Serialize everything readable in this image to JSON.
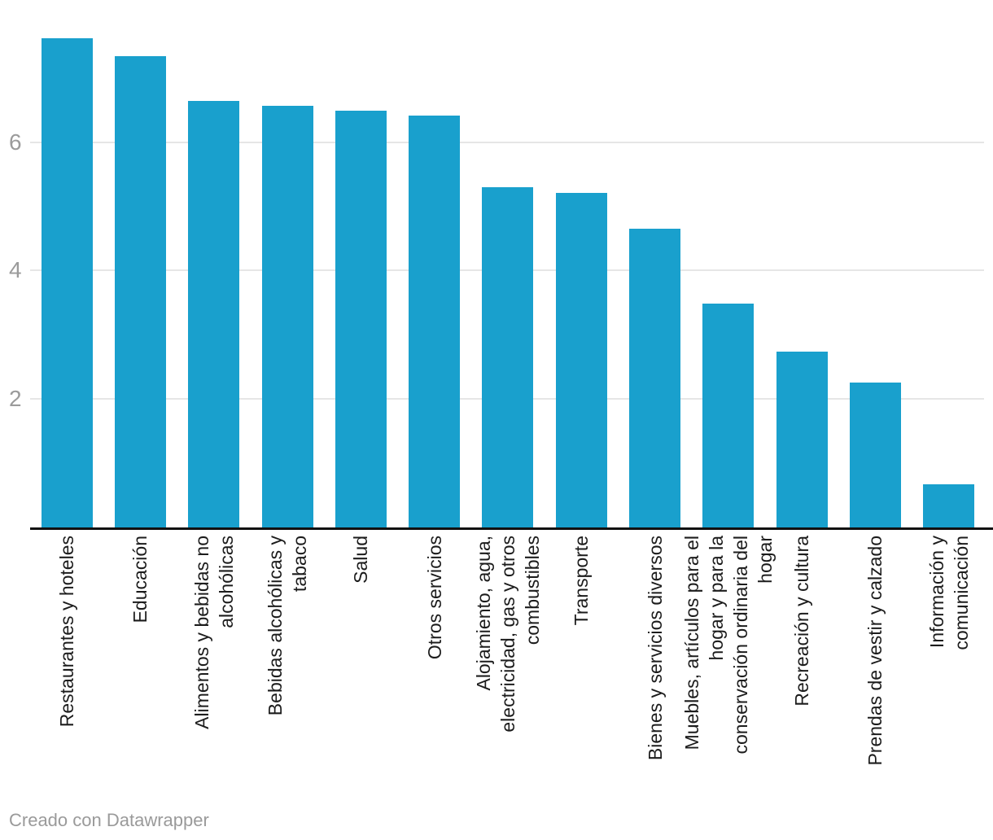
{
  "footer": {
    "credit": "Creado con Datawrapper"
  },
  "chart_data": {
    "type": "bar",
    "title": "",
    "xlabel": "",
    "ylabel": "",
    "categories": [
      "Restaurantes y hoteles",
      "Educación",
      "Alimentos y bebidas no\nalcohólicas",
      "Bebidas alcohólicas y\ntabaco",
      "Salud",
      "Otros servicios",
      "Alojamiento, agua,\nelectricidad, gas y otros\ncombustibles",
      "Transporte",
      "Bienes y servicios diversos",
      "Muebles, artículos para el\nhogar y para la\nconservación ordinaria del\nhogar",
      "Recreación y cultura",
      "Prendas de vestir y calzado",
      "Información y\ncomunicación"
    ],
    "values": [
      7.62,
      7.34,
      6.64,
      6.57,
      6.49,
      6.41,
      5.3,
      5.21,
      4.65,
      3.49,
      2.74,
      2.26,
      0.67
    ],
    "yticks": [
      2,
      4,
      6
    ],
    "ylim": [
      0,
      8
    ],
    "grid": true,
    "legend_position": "none",
    "bar_color": "#19A0CD",
    "gridline_color": "#e6e6e6",
    "axis_color": "#111111",
    "tick_label_color": "#9b9b9b",
    "category_label_color": "#1c1c1c"
  }
}
